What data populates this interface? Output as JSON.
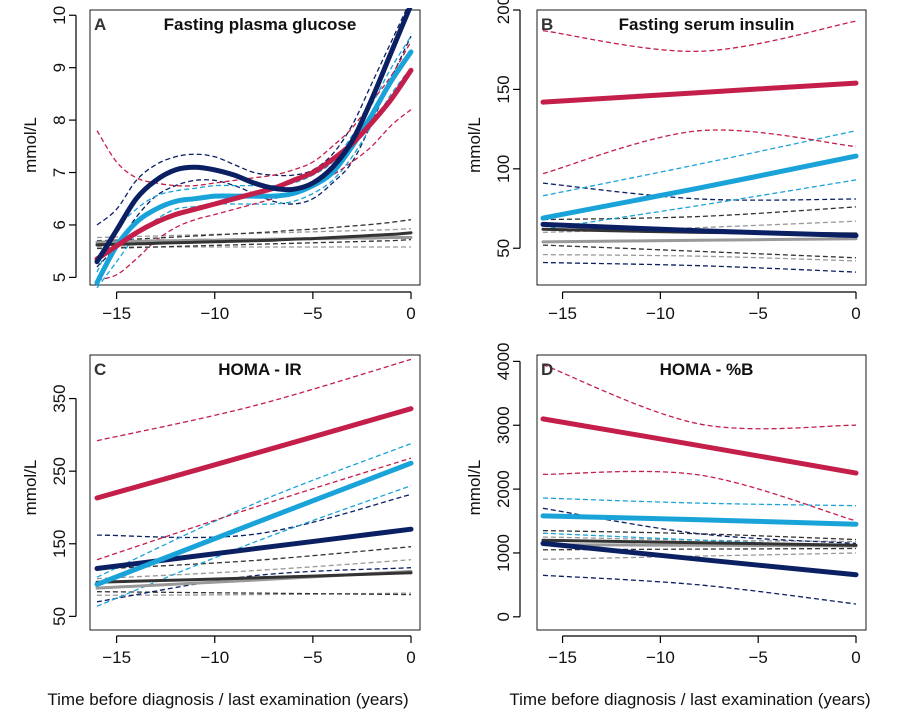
{
  "figure": {
    "xlabel_left": "Time before diagnosis / last examination (years)",
    "xlabel_right": "Time before diagnosis / last examination (years)"
  },
  "colors": {
    "red": "#c41e4a",
    "light_blue": "#1aa3d9",
    "dark_blue": "#0b1f63",
    "dark_gray": "#333333",
    "light_gray": "#999999"
  },
  "chart_data": [
    {
      "type": "line",
      "letter": "A",
      "title": "Fasting plasma glucose",
      "ylabel": "mmol/L",
      "xlim": [
        -16,
        0
      ],
      "ylim": [
        4.95,
        10.1
      ],
      "xticks": [
        -15,
        -10,
        -5,
        0
      ],
      "yticks": [
        5,
        6,
        7,
        8,
        9,
        10
      ],
      "x": [
        -16,
        -15,
        -14,
        -13,
        -12,
        -11,
        -10,
        -9,
        -8,
        -7,
        -6,
        -5,
        -4,
        -3,
        -2,
        -1,
        0
      ],
      "series": [
        {
          "color": "dark_blue",
          "values": [
            5.3,
            5.9,
            6.5,
            6.85,
            7.05,
            7.1,
            7.05,
            6.95,
            6.8,
            6.7,
            6.68,
            6.8,
            7.1,
            7.6,
            8.4,
            9.3,
            10.2
          ],
          "lower": [
            5.2,
            5.6,
            6.15,
            6.55,
            6.75,
            6.85,
            6.85,
            6.75,
            6.6,
            6.45,
            6.4,
            6.5,
            6.8,
            7.2,
            7.95,
            8.8,
            9.6
          ],
          "upper": [
            6.0,
            6.3,
            6.85,
            7.15,
            7.3,
            7.35,
            7.3,
            7.15,
            7.0,
            6.95,
            6.95,
            7.05,
            7.35,
            7.9,
            8.7,
            9.5,
            10.3
          ]
        },
        {
          "color": "red",
          "values": [
            5.35,
            5.6,
            5.85,
            6.05,
            6.2,
            6.3,
            6.4,
            6.5,
            6.6,
            6.7,
            6.85,
            7.0,
            7.25,
            7.55,
            7.95,
            8.4,
            8.95
          ],
          "lower": [
            4.95,
            5.05,
            5.35,
            5.7,
            5.95,
            6.1,
            6.2,
            6.3,
            6.4,
            6.5,
            6.6,
            6.75,
            6.95,
            7.2,
            7.5,
            7.9,
            8.2
          ],
          "upper": [
            7.8,
            7.2,
            6.9,
            6.8,
            6.75,
            6.75,
            6.8,
            6.85,
            6.9,
            6.95,
            7.05,
            7.2,
            7.5,
            7.85,
            8.35,
            8.85,
            9.5
          ]
        },
        {
          "color": "light_blue",
          "values": [
            4.9,
            5.6,
            6.05,
            6.3,
            6.45,
            6.5,
            6.55,
            6.55,
            6.55,
            6.55,
            6.6,
            6.75,
            7.0,
            7.5,
            8.1,
            8.75,
            9.3
          ],
          "lower": [
            4.8,
            5.3,
            5.8,
            6.1,
            6.3,
            6.35,
            6.4,
            6.4,
            6.4,
            6.4,
            6.45,
            6.6,
            6.85,
            7.3,
            7.9,
            8.5,
            9.0
          ],
          "upper": [
            5.1,
            5.9,
            6.3,
            6.55,
            6.65,
            6.7,
            6.75,
            6.75,
            6.75,
            6.75,
            6.8,
            6.95,
            7.2,
            7.7,
            8.3,
            9.0,
            9.6
          ]
        },
        {
          "color": "dark_gray",
          "values": [
            5.62,
            5.63,
            5.64,
            5.65,
            5.66,
            5.67,
            5.68,
            5.69,
            5.7,
            5.71,
            5.73,
            5.74,
            5.76,
            5.78,
            5.8,
            5.82,
            5.85
          ],
          "lower": [
            5.55,
            5.56,
            5.57,
            5.58,
            5.59,
            5.6,
            5.61,
            5.62,
            5.63,
            5.64,
            5.65,
            5.66,
            5.67,
            5.68,
            5.69,
            5.7,
            5.72
          ],
          "upper": [
            5.7,
            5.71,
            5.73,
            5.75,
            5.77,
            5.79,
            5.81,
            5.83,
            5.85,
            5.87,
            5.9,
            5.92,
            5.95,
            5.98,
            6.01,
            6.05,
            6.1
          ]
        },
        {
          "color": "light_gray",
          "values": [
            5.67,
            5.68,
            5.69,
            5.7,
            5.7,
            5.71,
            5.71,
            5.72,
            5.72,
            5.73,
            5.73,
            5.74,
            5.74,
            5.75,
            5.75,
            5.76,
            5.76
          ],
          "lower": [
            5.58,
            5.58,
            5.58,
            5.58,
            5.58,
            5.58,
            5.58,
            5.58,
            5.58,
            5.58,
            5.58,
            5.58,
            5.58,
            5.58,
            5.58,
            5.58,
            5.58
          ],
          "upper": [
            5.76,
            5.77,
            5.78,
            5.79,
            5.8,
            5.81,
            5.82,
            5.83,
            5.84,
            5.85,
            5.86,
            5.87,
            5.88,
            5.89,
            5.9,
            5.91,
            5.93
          ]
        }
      ]
    },
    {
      "type": "line",
      "letter": "B",
      "title": "Fasting serum insulin",
      "ylabel": "mmol/L",
      "xlim": [
        -16,
        0
      ],
      "ylim": [
        30,
        200
      ],
      "xticks": [
        -15,
        -10,
        -5,
        0
      ],
      "yticks": [
        50,
        100,
        150,
        200
      ],
      "x": [
        -16,
        -8,
        0
      ],
      "series": [
        {
          "color": "red",
          "values": [
            142,
            148,
            154
          ],
          "lower": [
            97,
            124,
            114
          ],
          "upper": [
            187,
            174,
            193
          ]
        },
        {
          "color": "light_blue",
          "values": [
            69,
            88,
            108
          ],
          "lower": [
            62,
            77,
            93
          ],
          "upper": [
            83,
            103,
            124
          ]
        },
        {
          "color": "dark_blue",
          "values": [
            65,
            61,
            58
          ],
          "lower": [
            41,
            39,
            35
          ],
          "upper": [
            91,
            81,
            81
          ]
        },
        {
          "color": "dark_gray",
          "values": [
            62,
            60,
            59
          ],
          "lower": [
            52,
            48,
            44
          ],
          "upper": [
            68,
            70,
            76
          ]
        },
        {
          "color": "light_gray",
          "values": [
            54,
            55,
            56
          ],
          "lower": [
            46,
            45,
            42
          ],
          "upper": [
            60,
            63,
            67
          ]
        }
      ]
    },
    {
      "type": "line",
      "letter": "C",
      "title": "HOMA - IR",
      "ylabel": "mmol/L",
      "xlim": [
        -16,
        0
      ],
      "ylim": [
        45,
        410
      ],
      "xticks": [
        -15,
        -10,
        -5,
        0
      ],
      "yticks": [
        50,
        150,
        250,
        350
      ],
      "x": [
        -16,
        -8,
        0
      ],
      "series": [
        {
          "color": "red",
          "values": [
            213,
            274,
            336
          ],
          "lower": [
            128,
            200,
            268
          ],
          "upper": [
            292,
            340,
            404
          ]
        },
        {
          "color": "light_blue",
          "values": [
            94,
            178,
            261
          ],
          "lower": [
            64,
            152,
            230
          ],
          "upper": [
            104,
            205,
            288
          ]
        },
        {
          "color": "dark_blue",
          "values": [
            116,
            143,
            170
          ],
          "lower": [
            70,
            106,
            117
          ],
          "upper": [
            162,
            163,
            218
          ]
        },
        {
          "color": "dark_gray",
          "values": [
            97,
            103,
            110
          ],
          "lower": [
            84,
            82,
            80
          ],
          "upper": [
            115,
            127,
            146
          ]
        },
        {
          "color": "light_gray",
          "values": [
            89,
            100,
            112
          ],
          "lower": [
            79,
            80,
            82
          ],
          "upper": [
            102,
            113,
            128
          ]
        }
      ]
    },
    {
      "type": "line",
      "letter": "D",
      "title": "HOMA - %B",
      "ylabel": "mmol/L",
      "xlim": [
        -16,
        0
      ],
      "ylim": [
        -50,
        4100
      ],
      "xticks": [
        -15,
        -10,
        -5,
        0
      ],
      "yticks": [
        0,
        1000,
        2000,
        3000,
        4000
      ],
      "x": [
        -16,
        -8,
        0
      ],
      "series": [
        {
          "color": "red",
          "values": [
            3100,
            2680,
            2250
          ],
          "lower": [
            2230,
            2220,
            1500
          ],
          "upper": [
            3950,
            3020,
            3000
          ]
        },
        {
          "color": "light_blue",
          "values": [
            1580,
            1520,
            1450
          ],
          "lower": [
            1310,
            1200,
            1100
          ],
          "upper": [
            1860,
            1780,
            1740
          ]
        },
        {
          "color": "dark_blue",
          "values": [
            1150,
            900,
            660
          ],
          "lower": [
            650,
            500,
            200
          ],
          "upper": [
            1700,
            1300,
            1150
          ]
        },
        {
          "color": "dark_gray",
          "values": [
            1200,
            1160,
            1120
          ],
          "lower": [
            1050,
            1060,
            1070
          ],
          "upper": [
            1350,
            1300,
            1210
          ]
        },
        {
          "color": "light_gray",
          "values": [
            1130,
            1120,
            1110
          ],
          "lower": [
            900,
            950,
            1000
          ],
          "upper": [
            1250,
            1200,
            1180
          ]
        }
      ]
    }
  ]
}
